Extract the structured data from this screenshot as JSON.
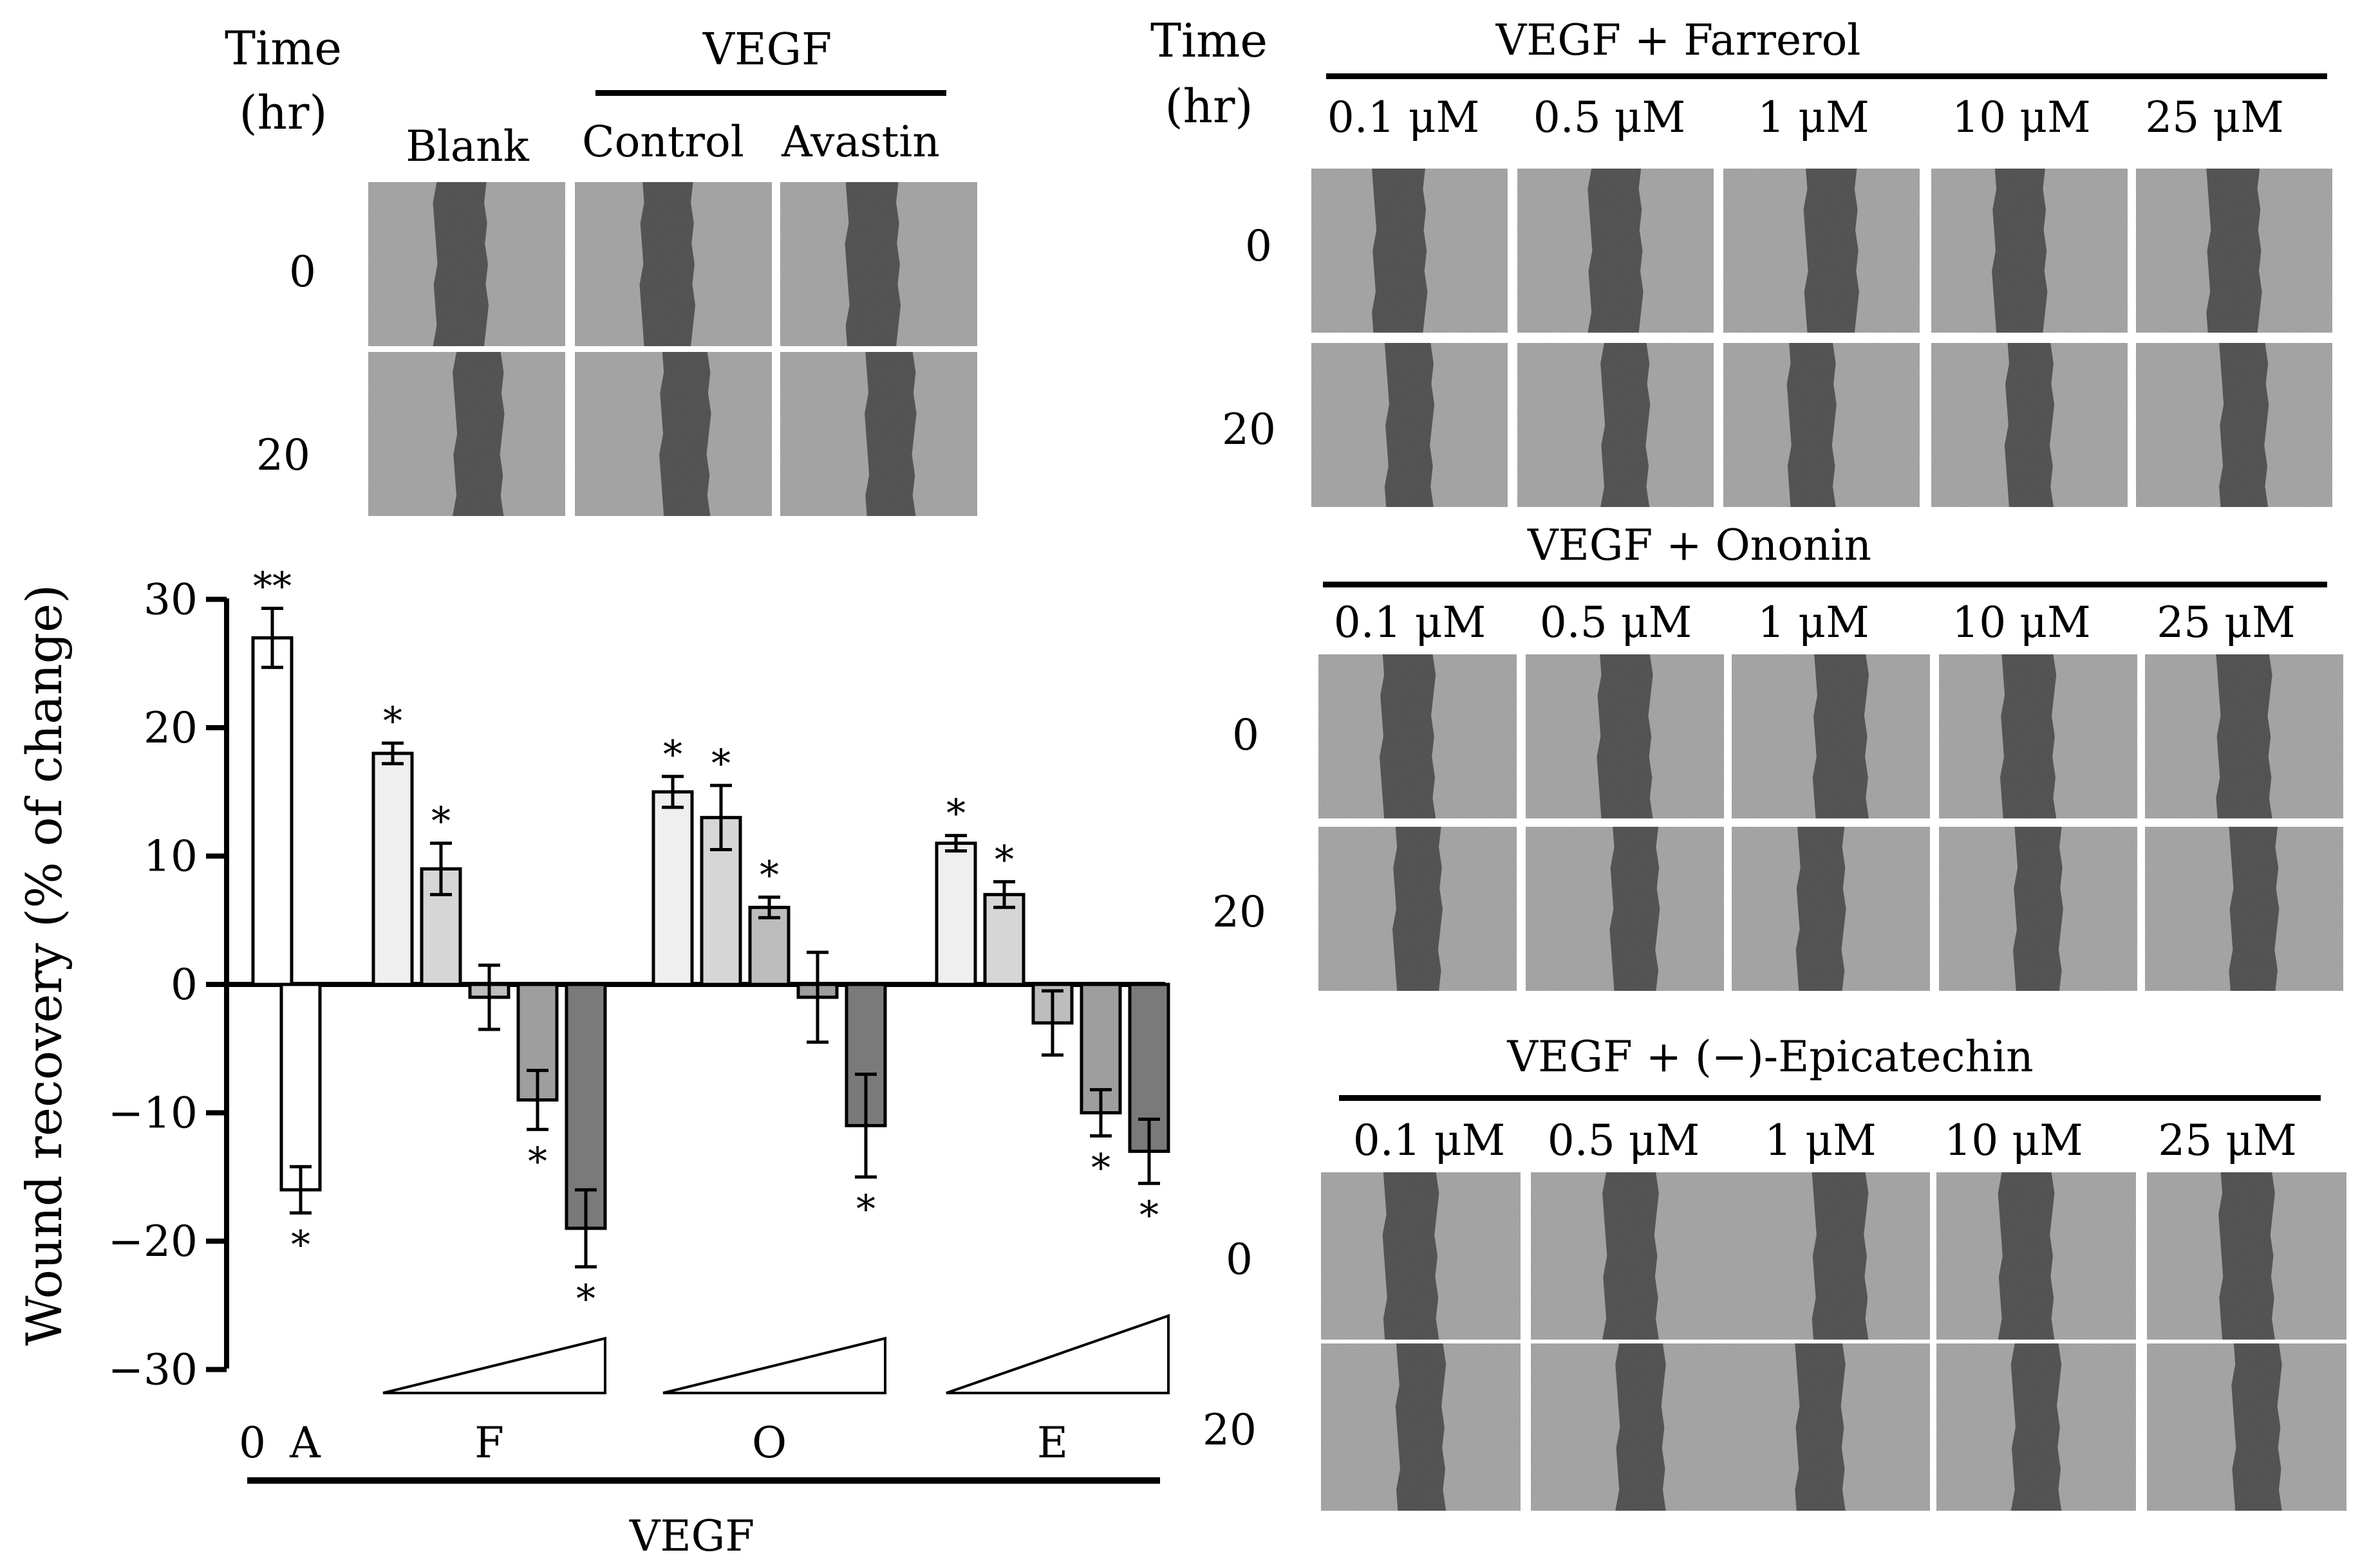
{
  "top_left_panel": {
    "time_header": [
      "Time",
      "(hr)"
    ],
    "group_label": "VEGF",
    "columns": [
      "Blank",
      "Control",
      "Avastin"
    ],
    "rows": [
      "0",
      "20"
    ]
  },
  "farrerol_panel": {
    "time_header": [
      "Time",
      "(hr)"
    ],
    "title": "VEGF + Farrerol",
    "columns": [
      "0.1 μM",
      "0.5 μM",
      "1 μM",
      "10 μM",
      "25 μM"
    ],
    "rows": [
      "0",
      "20"
    ]
  },
  "ononin_panel": {
    "title": "VEGF + Ononin",
    "columns": [
      "0.1 μM",
      "0.5 μM",
      "1 μM",
      "10 μM",
      "25 μM"
    ],
    "rows": [
      "0",
      "20"
    ]
  },
  "epicatechin_panel": {
    "title": "VEGF + (−)-Epicatechin",
    "columns": [
      "0.1 μM",
      "0.5 μM",
      "1 μM",
      "10 μM",
      "25 μM"
    ],
    "rows": [
      "0",
      "20"
    ]
  },
  "colors": {
    "panel_background": "#b5b5b5",
    "wound_gap": "#5d5d5d",
    "bar_fills": [
      "#ffffff",
      "#efefef",
      "#d6d6d6",
      "#bdbdbd",
      "#9e9e9e",
      "#7a7a7a"
    ]
  },
  "chart_data": {
    "type": "bar",
    "title": "",
    "xlabel": "VEGF",
    "ylabel": "Wound recovery (% of change)",
    "ylim": [
      -30,
      30
    ],
    "yticks": [
      30,
      20,
      10,
      0,
      -10,
      -20,
      -30
    ],
    "ytick_labels": [
      "30",
      "20",
      "10",
      "0",
      "−10",
      "−20",
      "−30"
    ],
    "groups": [
      {
        "label": "0",
        "bars": [
          {
            "value": 27,
            "error": 2.3,
            "sig": "**",
            "shade": 0
          }
        ]
      },
      {
        "label": "A",
        "bars": [
          {
            "value": -16,
            "error": 1.8,
            "sig": "*",
            "shade": 0
          }
        ]
      },
      {
        "label": "F",
        "bars": [
          {
            "value": 18,
            "error": 0.8,
            "sig": "*",
            "shade": 1
          },
          {
            "value": 9,
            "error": 2.0,
            "sig": "*",
            "shade": 2
          },
          {
            "value": -1,
            "error": 2.5,
            "sig": "",
            "shade": 3
          },
          {
            "value": -9,
            "error": 2.3,
            "sig": "*",
            "shade": 4
          },
          {
            "value": -19,
            "error": 3.0,
            "sig": "*",
            "shade": 5
          }
        ]
      },
      {
        "label": "O",
        "bars": [
          {
            "value": 15,
            "error": 1.2,
            "sig": "*",
            "shade": 1
          },
          {
            "value": 13,
            "error": 2.5,
            "sig": "*",
            "shade": 2
          },
          {
            "value": 6,
            "error": 0.8,
            "sig": "*",
            "shade": 3
          },
          {
            "value": -1,
            "error": 3.5,
            "sig": "",
            "shade": 4
          },
          {
            "value": -11,
            "error": 4.0,
            "sig": "*",
            "shade": 5
          }
        ]
      },
      {
        "label": "E",
        "bars": [
          {
            "value": 11,
            "error": 0.6,
            "sig": "*",
            "shade": 1
          },
          {
            "value": 7,
            "error": 1.0,
            "sig": "*",
            "shade": 2
          },
          {
            "value": -3,
            "error": 2.5,
            "sig": "",
            "shade": 3
          },
          {
            "value": -10,
            "error": 1.8,
            "sig": "*",
            "shade": 4
          },
          {
            "value": -13,
            "error": 2.5,
            "sig": "*",
            "shade": 5
          }
        ]
      }
    ]
  }
}
